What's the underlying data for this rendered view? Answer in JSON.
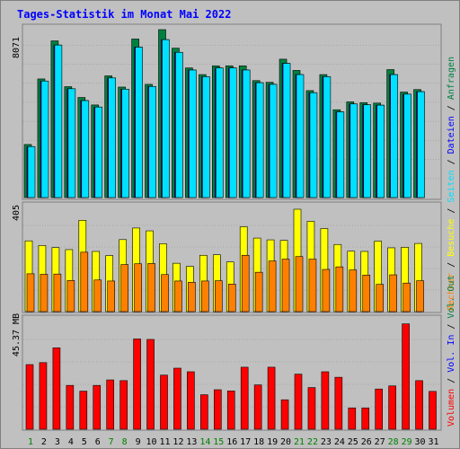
{
  "title": "Tages-Statistik im Monat Mai 2022",
  "colors": {
    "title": "#0000ff",
    "hits": "#008040",
    "files": "#00c0ff",
    "pages": "#00e0ff",
    "visits": "#ffff00",
    "sites": "#ff8000",
    "kbytes": "#ff0000",
    "weekend": "#008000",
    "weekday": "#000000",
    "panel_bg": "#c0c0c0",
    "grid": "#808080"
  },
  "chart_data": [
    {
      "type": "bar",
      "panel": "top",
      "axis_max_label": "8071",
      "ylim": [
        0,
        8071
      ],
      "categories": [
        "1",
        "2",
        "3",
        "4",
        "5",
        "6",
        "7",
        "8",
        "9",
        "10",
        "11",
        "12",
        "13",
        "14",
        "15",
        "16",
        "17",
        "18",
        "19",
        "20",
        "21",
        "22",
        "23",
        "24",
        "25",
        "26",
        "27",
        "28",
        "29",
        "30",
        "31"
      ],
      "legend": [
        {
          "label": "Anfragen",
          "color": "#008040"
        },
        {
          "label": "Dateien",
          "color": "#0000ff"
        },
        {
          "label": "Seiten",
          "color": "#00e0ff"
        }
      ],
      "series": [
        {
          "name": "Anfragen",
          "values": [
            2550,
            5700,
            7530,
            5330,
            4810,
            4450,
            5850,
            5310,
            7620,
            5440,
            8071,
            7180,
            6230,
            5910,
            6330,
            6330,
            6330,
            5620,
            5540,
            6650,
            6110,
            5140,
            5910,
            4220,
            4600,
            4560,
            4540,
            6150,
            5070,
            5190,
            0
          ]
        },
        {
          "name": "Dateien",
          "values": [
            2450,
            5600,
            7330,
            5230,
            4660,
            4350,
            5750,
            5210,
            7230,
            5340,
            7590,
            6980,
            6130,
            5810,
            6230,
            6230,
            6130,
            5520,
            5440,
            6450,
            5910,
            5040,
            5810,
            4120,
            4500,
            4460,
            4440,
            5910,
            4970,
            5090,
            0
          ]
        },
        {
          "name": "Seiten",
          "values": [
            2450,
            5600,
            7330,
            5230,
            4660,
            4350,
            5750,
            5210,
            7230,
            5340,
            7590,
            6980,
            6130,
            5810,
            6230,
            6230,
            6130,
            5520,
            5440,
            6450,
            5910,
            5040,
            5810,
            4120,
            4500,
            4460,
            4440,
            5910,
            4970,
            5090,
            0
          ]
        }
      ]
    },
    {
      "type": "bar",
      "panel": "middle",
      "axis_max_label": "405",
      "ylim": [
        0,
        405
      ],
      "categories": [
        "1",
        "2",
        "3",
        "4",
        "5",
        "6",
        "7",
        "8",
        "9",
        "10",
        "11",
        "12",
        "13",
        "14",
        "15",
        "16",
        "17",
        "18",
        "19",
        "20",
        "21",
        "22",
        "23",
        "24",
        "25",
        "26",
        "27",
        "28",
        "29",
        "30",
        "31"
      ],
      "legend": [
        {
          "label": "Besuche",
          "color": "#ffff00"
        },
        {
          "label": "Rechner",
          "color": "#ff8000"
        }
      ],
      "series": [
        {
          "name": "Besuche",
          "values": [
            275,
            257,
            249,
            241,
            355,
            234,
            218,
            280,
            325,
            314,
            264,
            188,
            176,
            219,
            221,
            193,
            330,
            286,
            279,
            277,
            398,
            351,
            323,
            261,
            235,
            234,
            274,
            248,
            250,
            265,
            0
          ]
        },
        {
          "name": "Rechner",
          "values": [
            147,
            145,
            146,
            121,
            231,
            123,
            119,
            183,
            186,
            187,
            144,
            119,
            114,
            119,
            120,
            107,
            219,
            153,
            197,
            204,
            214,
            204,
            164,
            174,
            162,
            142,
            106,
            143,
            111,
            120,
            0
          ]
        }
      ]
    },
    {
      "type": "bar",
      "panel": "bottom",
      "axis_max_label": "45.37 MB",
      "ylim": [
        0,
        45.37
      ],
      "categories": [
        "1",
        "2",
        "3",
        "4",
        "5",
        "6",
        "7",
        "8",
        "9",
        "10",
        "11",
        "12",
        "13",
        "14",
        "15",
        "16",
        "17",
        "18",
        "19",
        "20",
        "21",
        "22",
        "23",
        "24",
        "25",
        "26",
        "27",
        "28",
        "29",
        "30",
        "31"
      ],
      "legend": [
        {
          "label": "Volumen",
          "color": "#ff0000"
        },
        {
          "label": "Vol. In",
          "color": "#0000ff"
        },
        {
          "label": "Vol. Out",
          "color": "#008040"
        }
      ],
      "series": [
        {
          "name": "Volumen",
          "values": [
            27.0,
            27.8,
            34.0,
            18.3,
            15.9,
            18.3,
            20.6,
            20.3,
            37.7,
            37.5,
            22.6,
            25.5,
            24.0,
            14.4,
            16.5,
            16.0,
            25.9,
            18.5,
            25.9,
            12.3,
            23.0,
            17.4,
            24.0,
            21.7,
            8.9,
            8.9,
            16.8,
            18.1,
            44.0,
            20.3,
            15.8
          ]
        }
      ]
    }
  ],
  "weekend_days": [
    "1",
    "7",
    "8",
    "14",
    "15",
    "21",
    "22",
    "28",
    "29"
  ]
}
